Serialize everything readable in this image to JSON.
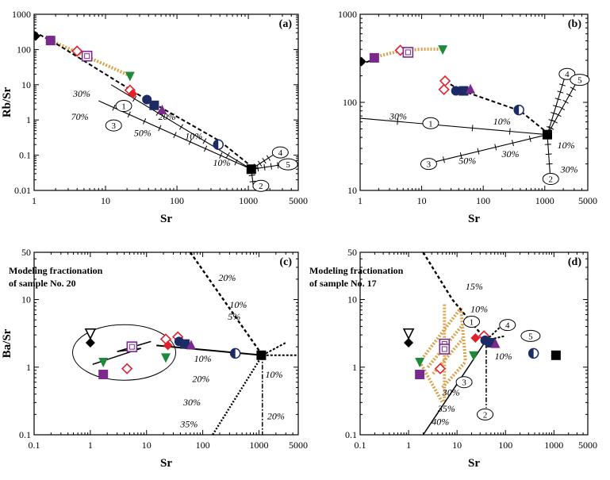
{
  "colors": {
    "purple": "#7a2a8c",
    "red": "#e0202a",
    "green": "#1f8a3a",
    "navy": "#1c2a66",
    "black": "#000000",
    "tan": "#d9a24a"
  },
  "chart_data": [
    {
      "id": "a",
      "type": "scatter",
      "panel_label": "(a)",
      "ylabel": "Rb/Sr",
      "xlabel": "Sr",
      "xscale": "log",
      "yscale": "log",
      "xlim": [
        1,
        5000
      ],
      "ylim": [
        0.01,
        1000
      ],
      "xticks": [
        "1",
        "10",
        "100",
        "1000",
        "5000"
      ],
      "yticks": [
        "0.01",
        "0.1",
        "1",
        "10",
        "100",
        "1000"
      ],
      "points": [
        {
          "x": 1.05,
          "y": 240,
          "m": "diamond",
          "c": "black"
        },
        {
          "x": 1.7,
          "y": 180,
          "m": "square",
          "c": "purple"
        },
        {
          "x": 4,
          "y": 90,
          "m": "diamond-open",
          "c": "red"
        },
        {
          "x": 5.5,
          "y": 65,
          "m": "square-open",
          "c": "purple"
        },
        {
          "x": 22,
          "y": 18,
          "m": "tri-down",
          "c": "green"
        },
        {
          "x": 22,
          "y": 7,
          "m": "diamond-open",
          "c": "red"
        },
        {
          "x": 24,
          "y": 5.5,
          "m": "diamond",
          "c": "red"
        },
        {
          "x": 38,
          "y": 3.8,
          "m": "circle",
          "c": "navy"
        },
        {
          "x": 48,
          "y": 2.6,
          "m": "square",
          "c": "navy"
        },
        {
          "x": 62,
          "y": 1.9,
          "m": "triangle",
          "c": "purple"
        },
        {
          "x": 380,
          "y": 0.2,
          "m": "circle-half",
          "c": "navy"
        },
        {
          "x": 1100,
          "y": 0.04,
          "m": "square",
          "c": "black"
        }
      ],
      "annotations": [
        "30%",
        "70%",
        "20%",
        "50%",
        "10%",
        "10%"
      ],
      "vector_labels": [
        "1",
        "2",
        "3",
        "4",
        "5"
      ]
    },
    {
      "id": "b",
      "type": "scatter",
      "panel_label": "(b)",
      "ylabel": "",
      "xlabel": "Sr",
      "xscale": "log",
      "yscale": "log",
      "xlim": [
        1,
        5000
      ],
      "ylim": [
        10,
        1000
      ],
      "xticks": [
        "1",
        "10",
        "100",
        "1000",
        "5000"
      ],
      "yticks": [
        "10",
        "100",
        "1000"
      ],
      "points": [
        {
          "x": 1.05,
          "y": 290,
          "m": "diamond",
          "c": "black"
        },
        {
          "x": 1.7,
          "y": 320,
          "m": "square",
          "c": "purple"
        },
        {
          "x": 4.5,
          "y": 390,
          "m": "diamond-open",
          "c": "red"
        },
        {
          "x": 6,
          "y": 370,
          "m": "square-open",
          "c": "purple"
        },
        {
          "x": 22,
          "y": 400,
          "m": "tri-down",
          "c": "green"
        },
        {
          "x": 24,
          "y": 175,
          "m": "diamond-open",
          "c": "red"
        },
        {
          "x": 23,
          "y": 140,
          "m": "diamond-open",
          "c": "red"
        },
        {
          "x": 36,
          "y": 135,
          "m": "circle",
          "c": "navy"
        },
        {
          "x": 48,
          "y": 135,
          "m": "square",
          "c": "navy"
        },
        {
          "x": 62,
          "y": 140,
          "m": "triangle",
          "c": "purple"
        },
        {
          "x": 380,
          "y": 82,
          "m": "circle-half",
          "c": "navy"
        },
        {
          "x": 1100,
          "y": 43,
          "m": "square",
          "c": "black"
        }
      ],
      "annotations": [
        "30%",
        "10%",
        "50%",
        "30%",
        "10%",
        "30%"
      ],
      "vector_labels": [
        "1",
        "2",
        "3",
        "4",
        "5"
      ]
    },
    {
      "id": "c",
      "type": "scatter",
      "panel_label": "(c)",
      "ylabel": "Ba/Sr",
      "xlabel": "Sr",
      "xscale": "log",
      "yscale": "log",
      "xlim": [
        0.1,
        5000
      ],
      "ylim": [
        0.1,
        50
      ],
      "xticks": [
        "0.1",
        "1",
        "10",
        "100",
        "1000",
        "5000"
      ],
      "yticks": [
        "0.1",
        "1",
        "10",
        "50"
      ],
      "note": [
        "Modeling fractionation",
        "of sample No. 20"
      ],
      "points": [
        {
          "x": 1.0,
          "y": 3.2,
          "m": "tri-down-open",
          "c": "black"
        },
        {
          "x": 1.0,
          "y": 2.3,
          "m": "diamond",
          "c": "black"
        },
        {
          "x": 1.7,
          "y": 1.2,
          "m": "tri-down",
          "c": "green"
        },
        {
          "x": 1.7,
          "y": 0.78,
          "m": "square",
          "c": "purple"
        },
        {
          "x": 4.5,
          "y": 0.95,
          "m": "diamond-open",
          "c": "red"
        },
        {
          "x": 5.5,
          "y": 2.0,
          "m": "square-open",
          "c": "purple"
        },
        {
          "x": 22,
          "y": 1.4,
          "m": "tri-down",
          "c": "green"
        },
        {
          "x": 22,
          "y": 2.6,
          "m": "diamond-open",
          "c": "red"
        },
        {
          "x": 24,
          "y": 2.1,
          "m": "diamond",
          "c": "red"
        },
        {
          "x": 36,
          "y": 2.8,
          "m": "diamond-open",
          "c": "red"
        },
        {
          "x": 38,
          "y": 2.4,
          "m": "circle",
          "c": "navy"
        },
        {
          "x": 48,
          "y": 2.2,
          "m": "square",
          "c": "navy"
        },
        {
          "x": 62,
          "y": 2.1,
          "m": "triangle",
          "c": "purple"
        },
        {
          "x": 380,
          "y": 1.6,
          "m": "circle-half",
          "c": "navy"
        },
        {
          "x": 1100,
          "y": 1.5,
          "m": "square",
          "c": "black"
        }
      ],
      "annotations": [
        "20%",
        "10%",
        "5%",
        "10%",
        "20%",
        "10%",
        "30%",
        "35%",
        "20%"
      ]
    },
    {
      "id": "d",
      "type": "scatter",
      "panel_label": "(d)",
      "ylabel": "",
      "xlabel": "Sr",
      "xscale": "log",
      "yscale": "log",
      "xlim": [
        0.1,
        5000
      ],
      "ylim": [
        0.1,
        50
      ],
      "xticks": [
        "0.1",
        "1",
        "10",
        "100",
        "1000",
        "5000"
      ],
      "yticks": [
        "0.1",
        "1",
        "10",
        "50"
      ],
      "note": [
        "Modeling fractionation",
        "of sample No. 17"
      ],
      "points": [
        {
          "x": 1.0,
          "y": 3.2,
          "m": "tri-down-open",
          "c": "black"
        },
        {
          "x": 1.0,
          "y": 2.3,
          "m": "diamond",
          "c": "black"
        },
        {
          "x": 1.7,
          "y": 1.2,
          "m": "tri-down",
          "c": "green"
        },
        {
          "x": 1.7,
          "y": 0.78,
          "m": "square",
          "c": "purple"
        },
        {
          "x": 4.5,
          "y": 0.95,
          "m": "diamond-open",
          "c": "red"
        },
        {
          "x": 5.5,
          "y": 2.2,
          "m": "square-open",
          "c": "purple"
        },
        {
          "x": 5.5,
          "y": 1.85,
          "m": "square-open",
          "c": "purple"
        },
        {
          "x": 22,
          "y": 1.5,
          "m": "tri-down",
          "c": "green"
        },
        {
          "x": 24,
          "y": 2.7,
          "m": "diamond",
          "c": "red"
        },
        {
          "x": 36,
          "y": 2.9,
          "m": "diamond-open",
          "c": "red"
        },
        {
          "x": 38,
          "y": 2.5,
          "m": "circle",
          "c": "navy"
        },
        {
          "x": 48,
          "y": 2.3,
          "m": "square",
          "c": "navy"
        },
        {
          "x": 62,
          "y": 2.2,
          "m": "triangle",
          "c": "purple"
        },
        {
          "x": 380,
          "y": 1.6,
          "m": "circle-half",
          "c": "navy"
        },
        {
          "x": 1100,
          "y": 1.5,
          "m": "square",
          "c": "black"
        }
      ],
      "annotations": [
        "15%",
        "10%",
        "10%",
        "30%",
        "35%",
        "40%"
      ],
      "vector_labels": [
        "1",
        "2",
        "3",
        "4",
        "5"
      ]
    }
  ]
}
